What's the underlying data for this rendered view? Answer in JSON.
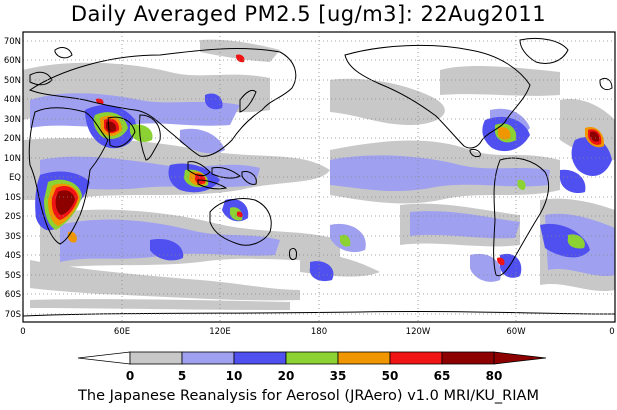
{
  "title": "Daily Averaged PM2.5 [ug/m3]: 22Aug2011",
  "credit": "The Japanese Reanalysis for Aerosol (JRAero) v1.0 MRI/KU_RIAM",
  "map": {
    "lat_labels": [
      "70N",
      "60N",
      "50N",
      "40N",
      "30N",
      "20N",
      "10N",
      "EQ",
      "10S",
      "20S",
      "30S",
      "40S",
      "50S",
      "60S",
      "70S"
    ],
    "lon_labels": [
      "0",
      "60E",
      "120E",
      "180",
      "120W",
      "60W",
      "0"
    ]
  },
  "colorbar": {
    "ticks": [
      "0",
      "5",
      "10",
      "20",
      "35",
      "50",
      "65",
      "80"
    ],
    "colors": {
      "c0": "#ffffff",
      "c5": "#c8c8c8",
      "c10": "#a0a0f0",
      "c20": "#5050f0",
      "c35": "#8cd232",
      "c50": "#f09600",
      "c65": "#f01414",
      "c80": "#8c0000"
    }
  }
}
